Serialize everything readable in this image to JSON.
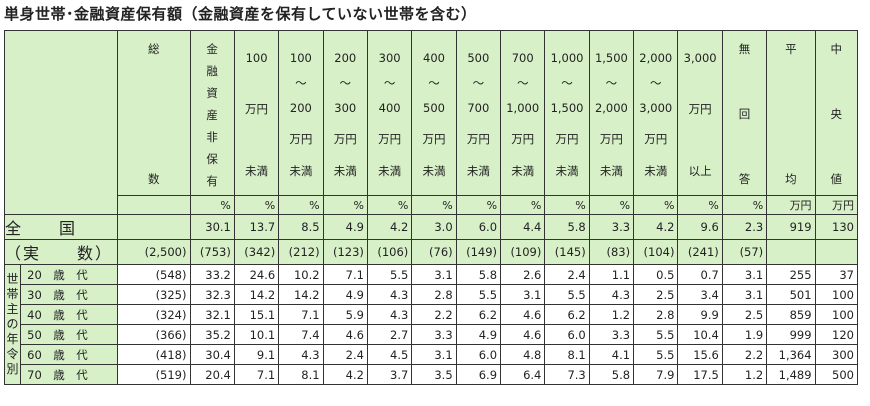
{
  "title": "単身世帯･金融資産保有額（金融資産を保有していない世帯を含む）",
  "columns": [
    {
      "key": "total",
      "lines": [
        "総",
        "数"
      ]
    },
    {
      "key": "none",
      "lines": [
        "金",
        "融",
        "資",
        "産",
        "非",
        "保",
        "有"
      ]
    },
    {
      "key": "lt100",
      "lines": [
        "100",
        "万円",
        "未満"
      ]
    },
    {
      "key": "c100",
      "lines": [
        "100",
        "〜",
        "200",
        "万円",
        "未満"
      ]
    },
    {
      "key": "c200",
      "lines": [
        "200",
        "〜",
        "300",
        "万円",
        "未満"
      ]
    },
    {
      "key": "c300",
      "lines": [
        "300",
        "〜",
        "400",
        "万円",
        "未満"
      ]
    },
    {
      "key": "c400",
      "lines": [
        "400",
        "〜",
        "500",
        "万円",
        "未満"
      ]
    },
    {
      "key": "c500",
      "lines": [
        "500",
        "〜",
        "700",
        "万円",
        "未満"
      ]
    },
    {
      "key": "c700",
      "lines": [
        "700",
        "〜",
        "1,000",
        "万円",
        "未満"
      ]
    },
    {
      "key": "c1000",
      "lines": [
        "1,000",
        "〜",
        "1,500",
        "万円",
        "未満"
      ]
    },
    {
      "key": "c1500",
      "lines": [
        "1,500",
        "〜",
        "2,000",
        "万円",
        "未満"
      ]
    },
    {
      "key": "c2000",
      "lines": [
        "2,000",
        "〜",
        "3,000",
        "万円",
        "未満"
      ]
    },
    {
      "key": "c3000",
      "lines": [
        "3,000",
        "万円",
        "以上"
      ]
    },
    {
      "key": "na",
      "lines": [
        "無",
        "回",
        "答"
      ]
    },
    {
      "key": "mean",
      "lines": [
        "平",
        "均"
      ]
    },
    {
      "key": "median",
      "lines": [
        "中",
        "央",
        "値"
      ]
    }
  ],
  "units": [
    "",
    "%",
    "%",
    "%",
    "%",
    "%",
    "%",
    "%",
    "%",
    "%",
    "%",
    "%",
    "%",
    "%",
    "万円",
    "万円"
  ],
  "national": {
    "label_top": "全　　国",
    "label_bottom": "（実　　数）",
    "pct": [
      "",
      "30.1",
      "13.7",
      "8.5",
      "4.9",
      "4.2",
      "3.0",
      "6.0",
      "4.4",
      "5.8",
      "3.3",
      "4.2",
      "9.6",
      "2.3",
      "919",
      "130"
    ],
    "counts": [
      "(2,500)",
      "(753)",
      "(342)",
      "(212)",
      "(123)",
      "(106)",
      "(76)",
      "(149)",
      "(109)",
      "(145)",
      "(83)",
      "(104)",
      "(241)",
      "(57)",
      "",
      ""
    ]
  },
  "age_group_label": "世帯主の年令別",
  "age_rows": [
    {
      "label": "20　歳　代",
      "values": [
        "(548)",
        "33.2",
        "24.6",
        "10.2",
        "7.1",
        "5.5",
        "3.1",
        "5.8",
        "2.6",
        "2.4",
        "1.1",
        "0.5",
        "0.7",
        "3.1",
        "255",
        "37"
      ]
    },
    {
      "label": "30　歳　代",
      "values": [
        "(325)",
        "32.3",
        "14.2",
        "14.2",
        "4.9",
        "4.3",
        "2.8",
        "5.5",
        "3.1",
        "5.5",
        "4.3",
        "2.5",
        "3.4",
        "3.1",
        "501",
        "100"
      ]
    },
    {
      "label": "40　歳　代",
      "values": [
        "(324)",
        "32.1",
        "15.1",
        "7.1",
        "5.9",
        "4.3",
        "2.2",
        "6.2",
        "4.6",
        "6.2",
        "1.2",
        "2.8",
        "9.9",
        "2.5",
        "859",
        "100"
      ]
    },
    {
      "label": "50　歳　代",
      "values": [
        "(366)",
        "35.2",
        "10.1",
        "7.4",
        "4.6",
        "2.7",
        "3.3",
        "4.9",
        "4.6",
        "6.0",
        "3.3",
        "5.5",
        "10.4",
        "1.9",
        "999",
        "120"
      ]
    },
    {
      "label": "60　歳　代",
      "values": [
        "(418)",
        "30.4",
        "9.1",
        "4.3",
        "2.4",
        "4.5",
        "3.1",
        "6.0",
        "4.8",
        "8.1",
        "4.1",
        "5.5",
        "15.6",
        "2.2",
        "1,364",
        "300"
      ]
    },
    {
      "label": "70　歳　代",
      "values": [
        "(519)",
        "20.4",
        "7.1",
        "8.1",
        "4.2",
        "3.7",
        "3.5",
        "6.9",
        "6.4",
        "7.3",
        "5.8",
        "7.9",
        "17.5",
        "1.2",
        "1,489",
        "500"
      ]
    }
  ]
}
